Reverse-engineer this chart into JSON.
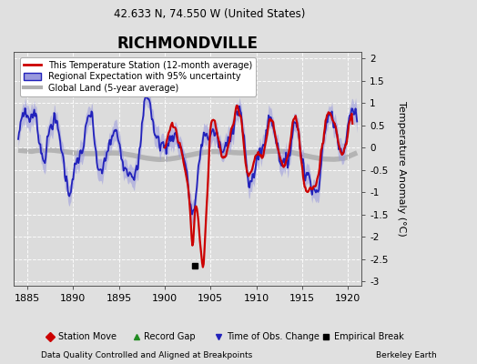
{
  "title": "RICHMONDVILLE",
  "subtitle": "42.633 N, 74.550 W (United States)",
  "ylabel_right": "Temperature Anomaly (°C)",
  "footer_left": "Data Quality Controlled and Aligned at Breakpoints",
  "footer_right": "Berkeley Earth",
  "xlim": [
    1883.5,
    1921.5
  ],
  "ylim": [
    -3.1,
    2.15
  ],
  "yticks": [
    -3,
    -2.5,
    -2,
    -1.5,
    -1,
    -0.5,
    0,
    0.5,
    1,
    1.5,
    2
  ],
  "xticks": [
    1885,
    1890,
    1895,
    1900,
    1905,
    1910,
    1915,
    1920
  ],
  "bg_color": "#e0e0e0",
  "plot_bg_color": "#dcdcdc",
  "regional_color": "#2222bb",
  "regional_fill_color": "#9999dd",
  "station_color": "#cc0000",
  "global_color": "#b0b0b0",
  "global_linewidth": 4.0,
  "regional_linewidth": 1.3,
  "station_linewidth": 1.6,
  "empirical_break_x": 1903.3,
  "empirical_break_y": -2.65,
  "legend_station": "This Temperature Station (12-month average)",
  "legend_regional": "Regional Expectation with 95% uncertainty",
  "legend_global": "Global Land (5-year average)",
  "marker_station_move": "◆ Station Move",
  "marker_record_gap": "▲ Record Gap",
  "marker_time_obs": "▼ Time of Obs. Change",
  "marker_empirical": "■ Empirical Break"
}
